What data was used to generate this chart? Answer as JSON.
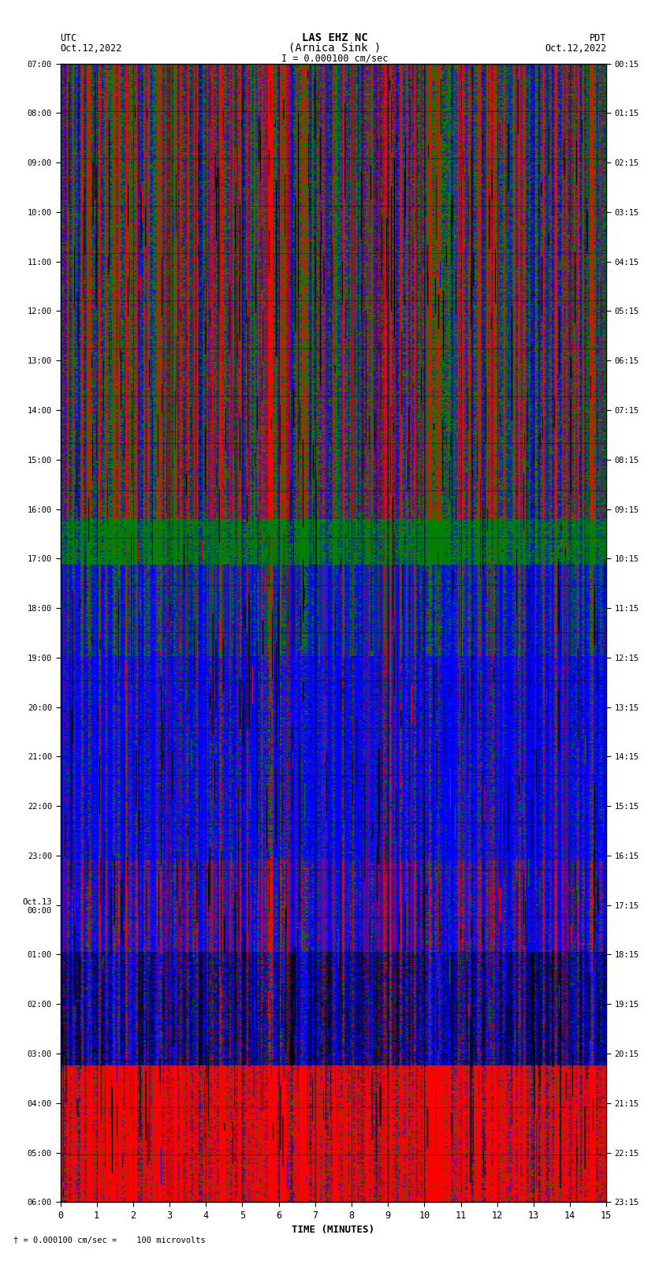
{
  "title_line1": "LAS EHZ NC",
  "title_line2": "(Arnica Sink )",
  "scale_text": "I = 0.000100 cm/sec",
  "footer_text": "= 0.000100 cm/sec =    100 microvolts",
  "left_label_1": "UTC",
  "left_label_2": "Oct.12,2022",
  "right_label_1": "PDT",
  "right_label_2": "Oct.12,2022",
  "xlabel": "TIME (MINUTES)",
  "left_yticks": [
    "07:00",
    "08:00",
    "09:00",
    "10:00",
    "11:00",
    "12:00",
    "13:00",
    "14:00",
    "15:00",
    "16:00",
    "17:00",
    "18:00",
    "19:00",
    "20:00",
    "21:00",
    "22:00",
    "23:00",
    "Oct.13\n00:00",
    "01:00",
    "02:00",
    "03:00",
    "04:00",
    "05:00",
    "06:00"
  ],
  "right_yticks": [
    "00:15",
    "01:15",
    "02:15",
    "03:15",
    "04:15",
    "05:15",
    "06:15",
    "07:15",
    "08:15",
    "09:15",
    "10:15",
    "11:15",
    "12:15",
    "13:15",
    "14:15",
    "15:15",
    "16:15",
    "17:15",
    "18:15",
    "19:15",
    "20:15",
    "21:15",
    "22:15",
    "23:15"
  ],
  "xticks": [
    0,
    1,
    2,
    3,
    4,
    5,
    6,
    7,
    8,
    9,
    10,
    11,
    12,
    13,
    14,
    15
  ],
  "xlim": [
    0,
    15
  ],
  "ylim": [
    0,
    24
  ],
  "fig_width": 8.5,
  "fig_height": 16.13,
  "bg_color": "#ffffff",
  "seed": 42
}
